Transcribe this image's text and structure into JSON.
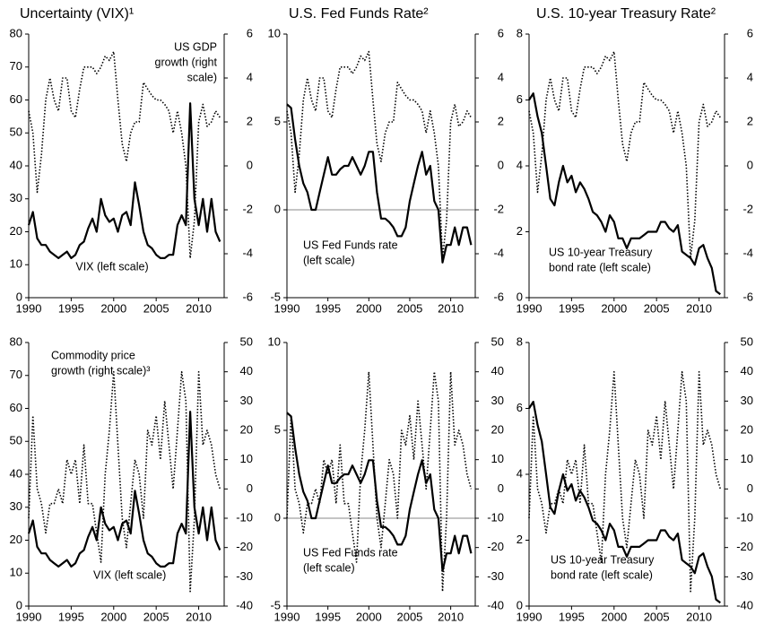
{
  "chart_data": [
    {
      "type": "line",
      "title": "Uncertainty (VIX)¹",
      "x": [
        1990,
        1990.5,
        1991,
        1991.5,
        1992,
        1992.5,
        1993,
        1993.5,
        1994,
        1994.5,
        1995,
        1995.5,
        1996,
        1996.5,
        1997,
        1997.5,
        1998,
        1998.5,
        1999,
        1999.5,
        2000,
        2000.5,
        2001,
        2001.5,
        2002,
        2002.5,
        2003,
        2003.5,
        2004,
        2004.5,
        2005,
        2005.5,
        2006,
        2006.5,
        2007,
        2007.5,
        2008,
        2008.5,
        2009,
        2009.5,
        2010,
        2010.5,
        2011,
        2011.5,
        2012,
        2012.5
      ],
      "xlim": [
        1990,
        2013
      ],
      "xticks": [
        1990,
        1995,
        2000,
        2005,
        2010
      ],
      "ylim": [
        0,
        80
      ],
      "yticks": [
        0,
        10,
        20,
        30,
        40,
        50,
        60,
        70,
        80
      ],
      "y2lim": [
        -6,
        6
      ],
      "y2ticks": [
        -6,
        -4,
        -2,
        0,
        2,
        4,
        6
      ],
      "series": [
        {
          "color": "#000000",
          "style": "solid",
          "values": [
            22,
            26,
            18,
            16,
            16,
            14,
            13,
            12,
            13,
            14,
            12,
            13,
            16,
            17,
            21,
            24,
            20,
            30,
            25,
            23,
            24,
            20,
            25,
            26,
            22,
            35,
            28,
            20,
            16,
            15,
            13,
            12,
            12,
            13,
            13,
            22,
            25,
            22,
            59,
            30,
            22,
            30,
            20,
            30,
            20,
            17
          ]
        },
        {
          "color": "#000000",
          "style": "dotted",
          "axis": "y2",
          "values": [
            2.5,
            1.5,
            -1.2,
            0.5,
            3,
            4,
            3,
            2.5,
            4,
            4,
            2.5,
            2.2,
            3.5,
            4.5,
            4.5,
            4.5,
            4.2,
            4.5,
            5,
            4.8,
            5.2,
            3,
            1,
            0.2,
            1.5,
            2,
            2,
            3.8,
            3.5,
            3.2,
            3,
            3,
            2.8,
            2.5,
            1.5,
            2.5,
            1.5,
            0,
            -4.2,
            -2.5,
            2,
            2.8,
            1.8,
            2,
            2.5,
            2.2
          ]
        }
      ],
      "annotations": [
        [
          "US GDP",
          "growth (right",
          "scale)"
        ],
        [
          "VIX (left scale)"
        ]
      ]
    },
    {
      "type": "line",
      "title": "U.S. Fed Funds Rate²",
      "x": [
        1990,
        1990.5,
        1991,
        1991.5,
        1992,
        1992.5,
        1993,
        1993.5,
        1994,
        1994.5,
        1995,
        1995.5,
        1996,
        1996.5,
        1997,
        1997.5,
        1998,
        1998.5,
        1999,
        1999.5,
        2000,
        2000.5,
        2001,
        2001.5,
        2002,
        2002.5,
        2003,
        2003.5,
        2004,
        2004.5,
        2005,
        2005.5,
        2006,
        2006.5,
        2007,
        2007.5,
        2008,
        2008.5,
        2009,
        2009.5,
        2010,
        2010.5,
        2011,
        2011.5,
        2012,
        2012.5
      ],
      "xlim": [
        1990,
        2013
      ],
      "xticks": [
        1990,
        1995,
        2000,
        2005,
        2010
      ],
      "ylim": [
        -5,
        10
      ],
      "yticks": [
        -5,
        0,
        5,
        10
      ],
      "y2lim": [
        -6,
        6
      ],
      "y2ticks": [
        -6,
        -4,
        -2,
        0,
        2,
        4,
        6
      ],
      "series": [
        {
          "color": "#000000",
          "style": "solid",
          "values": [
            6,
            5.8,
            4,
            2.5,
            1.5,
            1,
            0,
            0,
            1,
            2,
            3,
            2,
            2,
            2.3,
            2.5,
            2.5,
            3,
            2.5,
            2,
            2.5,
            3.3,
            3.3,
            1,
            -0.5,
            -0.5,
            -0.7,
            -1,
            -1.5,
            -1.5,
            -1,
            0.5,
            1.5,
            2.5,
            3.3,
            2,
            2.5,
            0.5,
            0,
            -3,
            -2,
            -2,
            -1,
            -2,
            -1,
            -1,
            -2
          ]
        },
        {
          "color": "#000000",
          "style": "dotted",
          "axis": "y2",
          "values": [
            2.5,
            1.5,
            -1.2,
            0.5,
            3,
            4,
            3,
            2.5,
            4,
            4,
            2.5,
            2.2,
            3.5,
            4.5,
            4.5,
            4.5,
            4.2,
            4.5,
            5,
            4.8,
            5.2,
            3,
            1,
            0.2,
            1.5,
            2,
            2,
            3.8,
            3.5,
            3.2,
            3,
            3,
            2.8,
            2.5,
            1.5,
            2.5,
            1.5,
            0,
            -4.2,
            -2.5,
            2,
            2.8,
            1.8,
            2,
            2.5,
            2.2
          ]
        }
      ],
      "annotations": [
        [
          "US Fed Funds rate",
          "(left scale)"
        ]
      ]
    },
    {
      "type": "line",
      "title": "U.S. 10-year Treasury Rate²",
      "x": [
        1990,
        1990.5,
        1991,
        1991.5,
        1992,
        1992.5,
        1993,
        1993.5,
        1994,
        1994.5,
        1995,
        1995.5,
        1996,
        1996.5,
        1997,
        1997.5,
        1998,
        1998.5,
        1999,
        1999.5,
        2000,
        2000.5,
        2001,
        2001.5,
        2002,
        2002.5,
        2003,
        2003.5,
        2004,
        2004.5,
        2005,
        2005.5,
        2006,
        2006.5,
        2007,
        2007.5,
        2008,
        2008.5,
        2009,
        2009.5,
        2010,
        2010.5,
        2011,
        2011.5,
        2012,
        2012.5
      ],
      "xlim": [
        1990,
        2013
      ],
      "xticks": [
        1990,
        1995,
        2000,
        2005,
        2010
      ],
      "ylim": [
        0,
        8
      ],
      "yticks": [
        0,
        2,
        4,
        6,
        8
      ],
      "y2lim": [
        -6,
        6
      ],
      "y2ticks": [
        -6,
        -4,
        -2,
        0,
        2,
        4,
        6
      ],
      "series": [
        {
          "color": "#000000",
          "style": "solid",
          "values": [
            6,
            6.2,
            5.5,
            5,
            4,
            3,
            2.8,
            3.5,
            4,
            3.5,
            3.7,
            3.2,
            3.5,
            3.3,
            3,
            2.6,
            2.5,
            2.3,
            2,
            2.5,
            2.3,
            1.8,
            1.8,
            1.5,
            1.8,
            1.8,
            1.8,
            1.9,
            2,
            2,
            2,
            2.3,
            2.3,
            2.1,
            2,
            2.2,
            1.4,
            1.3,
            1.2,
            1,
            1.5,
            1.6,
            1.2,
            0.9,
            0.2,
            0.1
          ]
        },
        {
          "color": "#000000",
          "style": "dotted",
          "axis": "y2",
          "values": [
            2.5,
            1.5,
            -1.2,
            0.5,
            3,
            4,
            3,
            2.5,
            4,
            4,
            2.5,
            2.2,
            3.5,
            4.5,
            4.5,
            4.5,
            4.2,
            4.5,
            5,
            4.8,
            5.2,
            3,
            1,
            0.2,
            1.5,
            2,
            2,
            3.8,
            3.5,
            3.2,
            3,
            3,
            2.8,
            2.5,
            1.5,
            2.5,
            1.5,
            0,
            -4.2,
            -2.5,
            2,
            2.8,
            1.8,
            2,
            2.5,
            2.2
          ]
        }
      ],
      "annotations": [
        [
          "US 10-year Treasury",
          "bond rate (left scale)"
        ]
      ]
    },
    {
      "type": "line",
      "x": [
        1990,
        1990.5,
        1991,
        1991.5,
        1992,
        1992.5,
        1993,
        1993.5,
        1994,
        1994.5,
        1995,
        1995.5,
        1996,
        1996.5,
        1997,
        1997.5,
        1998,
        1998.5,
        1999,
        1999.5,
        2000,
        2000.5,
        2001,
        2001.5,
        2002,
        2002.5,
        2003,
        2003.5,
        2004,
        2004.5,
        2005,
        2005.5,
        2006,
        2006.5,
        2007,
        2007.5,
        2008,
        2008.5,
        2009,
        2009.5,
        2010,
        2010.5,
        2011,
        2011.5,
        2012,
        2012.5
      ],
      "xlim": [
        1990,
        2013
      ],
      "xticks": [
        1990,
        1995,
        2000,
        2005,
        2010
      ],
      "ylim": [
        0,
        80
      ],
      "yticks": [
        0,
        10,
        20,
        30,
        40,
        50,
        60,
        70,
        80
      ],
      "y2lim": [
        -40,
        50
      ],
      "y2ticks": [
        -40,
        -30,
        -20,
        -10,
        0,
        10,
        20,
        30,
        40,
        50
      ],
      "series": [
        {
          "color": "#000000",
          "style": "solid",
          "values": [
            22,
            26,
            18,
            16,
            16,
            14,
            13,
            12,
            13,
            14,
            12,
            13,
            16,
            17,
            21,
            24,
            20,
            30,
            25,
            23,
            24,
            20,
            25,
            26,
            22,
            35,
            28,
            20,
            16,
            15,
            13,
            12,
            12,
            13,
            13,
            22,
            25,
            22,
            59,
            30,
            22,
            30,
            20,
            30,
            20,
            17
          ]
        },
        {
          "color": "#000000",
          "style": "dotted",
          "axis": "y2",
          "values": [
            -10,
            25,
            0,
            -5,
            -15,
            -5,
            -5,
            0,
            -5,
            10,
            5,
            10,
            -5,
            15,
            -5,
            -5,
            -15,
            -25,
            5,
            20,
            40,
            15,
            -10,
            -20,
            -5,
            10,
            5,
            -10,
            20,
            15,
            25,
            10,
            30,
            15,
            0,
            20,
            40,
            30,
            -35,
            -10,
            40,
            15,
            20,
            15,
            5,
            0
          ]
        }
      ],
      "annotations": [
        [
          "Commodity price",
          "growth (right scale)³"
        ],
        [
          "VIX (left scale)"
        ]
      ]
    },
    {
      "type": "line",
      "x": [
        1990,
        1990.5,
        1991,
        1991.5,
        1992,
        1992.5,
        1993,
        1993.5,
        1994,
        1994.5,
        1995,
        1995.5,
        1996,
        1996.5,
        1997,
        1997.5,
        1998,
        1998.5,
        1999,
        1999.5,
        2000,
        2000.5,
        2001,
        2001.5,
        2002,
        2002.5,
        2003,
        2003.5,
        2004,
        2004.5,
        2005,
        2005.5,
        2006,
        2006.5,
        2007,
        2007.5,
        2008,
        2008.5,
        2009,
        2009.5,
        2010,
        2010.5,
        2011,
        2011.5,
        2012,
        2012.5
      ],
      "xlim": [
        1990,
        2013
      ],
      "xticks": [
        1990,
        1995,
        2000,
        2005,
        2010
      ],
      "ylim": [
        -5,
        10
      ],
      "yticks": [
        -5,
        0,
        5,
        10
      ],
      "y2lim": [
        -40,
        50
      ],
      "y2ticks": [
        -40,
        -30,
        -20,
        -10,
        0,
        10,
        20,
        30,
        40,
        50
      ],
      "series": [
        {
          "color": "#000000",
          "style": "solid",
          "values": [
            6,
            5.8,
            4,
            2.5,
            1.5,
            1,
            0,
            0,
            1,
            2,
            3,
            2,
            2,
            2.3,
            2.5,
            2.5,
            3,
            2.5,
            2,
            2.5,
            3.3,
            3.3,
            1,
            -0.5,
            -0.5,
            -0.7,
            -1,
            -1.5,
            -1.5,
            -1,
            0.5,
            1.5,
            2.5,
            3.3,
            2,
            2.5,
            0.5,
            0,
            -3,
            -2,
            -2,
            -1,
            -2,
            -1,
            -1,
            -2
          ]
        },
        {
          "color": "#000000",
          "style": "dotted",
          "axis": "y2",
          "values": [
            -10,
            25,
            0,
            -5,
            -15,
            -5,
            -5,
            0,
            -5,
            10,
            5,
            10,
            -5,
            15,
            -5,
            -5,
            -15,
            -25,
            5,
            20,
            40,
            15,
            -10,
            -20,
            -5,
            10,
            5,
            -10,
            20,
            15,
            25,
            10,
            30,
            15,
            0,
            20,
            40,
            30,
            -35,
            -10,
            40,
            15,
            20,
            15,
            5,
            0
          ]
        }
      ],
      "annotations": [
        [
          "US Fed Funds rate",
          "(left scale)"
        ]
      ]
    },
    {
      "type": "line",
      "x": [
        1990,
        1990.5,
        1991,
        1991.5,
        1992,
        1992.5,
        1993,
        1993.5,
        1994,
        1994.5,
        1995,
        1995.5,
        1996,
        1996.5,
        1997,
        1997.5,
        1998,
        1998.5,
        1999,
        1999.5,
        2000,
        2000.5,
        2001,
        2001.5,
        2002,
        2002.5,
        2003,
        2003.5,
        2004,
        2004.5,
        2005,
        2005.5,
        2006,
        2006.5,
        2007,
        2007.5,
        2008,
        2008.5,
        2009,
        2009.5,
        2010,
        2010.5,
        2011,
        2011.5,
        2012,
        2012.5
      ],
      "xlim": [
        1990,
        2013
      ],
      "xticks": [
        1990,
        1995,
        2000,
        2005,
        2010
      ],
      "ylim": [
        0,
        8
      ],
      "yticks": [
        0,
        2,
        4,
        6,
        8
      ],
      "y2lim": [
        -40,
        50
      ],
      "y2ticks": [
        -40,
        -30,
        -20,
        -10,
        0,
        10,
        20,
        30,
        40,
        50
      ],
      "series": [
        {
          "color": "#000000",
          "style": "solid",
          "values": [
            6,
            6.2,
            5.5,
            5,
            4,
            3,
            2.8,
            3.5,
            4,
            3.5,
            3.7,
            3.2,
            3.5,
            3.3,
            3,
            2.6,
            2.5,
            2.3,
            2,
            2.5,
            2.3,
            1.8,
            1.8,
            1.5,
            1.8,
            1.8,
            1.8,
            1.9,
            2,
            2,
            2,
            2.3,
            2.3,
            2.1,
            2,
            2.2,
            1.4,
            1.3,
            1.2,
            1,
            1.5,
            1.6,
            1.2,
            0.9,
            0.2,
            0.1
          ]
        },
        {
          "color": "#000000",
          "style": "dotted",
          "axis": "y2",
          "values": [
            -10,
            25,
            0,
            -5,
            -15,
            -5,
            -5,
            0,
            -5,
            10,
            5,
            10,
            -5,
            15,
            -5,
            -5,
            -15,
            -25,
            5,
            20,
            40,
            15,
            -10,
            -20,
            -5,
            10,
            5,
            -10,
            20,
            15,
            25,
            10,
            30,
            15,
            0,
            20,
            40,
            30,
            -35,
            -10,
            40,
            15,
            20,
            15,
            5,
            0
          ]
        }
      ],
      "annotations": [
        [
          "US 10-year Treasury",
          "bond rate (left scale)"
        ]
      ]
    }
  ]
}
